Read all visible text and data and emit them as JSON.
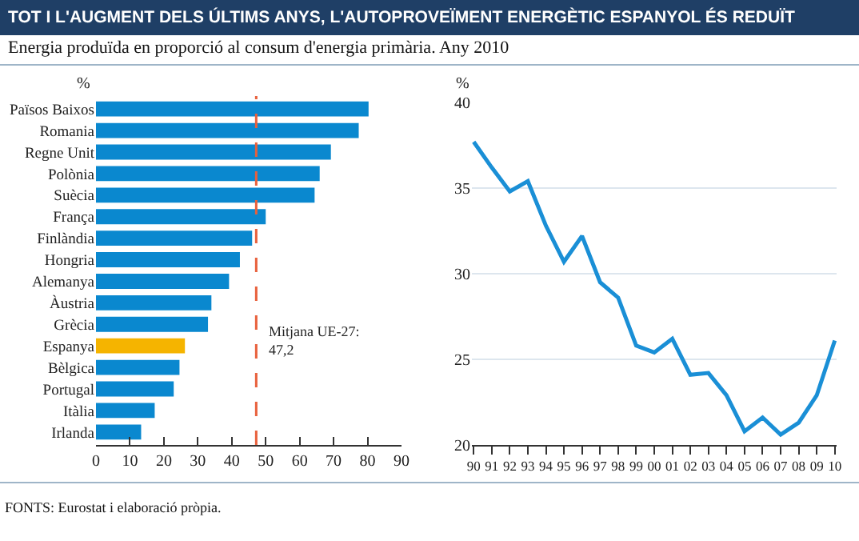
{
  "chart_data": [
    {
      "type": "bar",
      "orientation": "horizontal",
      "title": "TOT I L'AUGMENT DELS ÚLTIMS ANYS, L'AUTOPROVEÏMENT ENERGÈTIC ESPANYOL ÉS REDUÏT",
      "subtitle": "Energia produïda en proporció al consum d'energia primària. Any 2010",
      "xlabel": "%",
      "categories": [
        "Països Baixos",
        "Romania",
        "Regne Unit",
        "Polònia",
        "Suècia",
        "França",
        "Finlàndia",
        "Hongria",
        "Alemanya",
        "Àustria",
        "Grècia",
        "Espanya",
        "Bèlgica",
        "Portugal",
        "Itàlia",
        "Irlanda"
      ],
      "values": [
        80.3,
        77.4,
        69.2,
        65.9,
        64.4,
        50,
        46,
        42.4,
        39.2,
        34,
        33,
        26.2,
        24.6,
        22.9,
        17.3,
        13.3
      ],
      "colors": [
        "#0a88cf",
        "#0a88cf",
        "#0a88cf",
        "#0a88cf",
        "#0a88cf",
        "#0a88cf",
        "#0a88cf",
        "#0a88cf",
        "#0a88cf",
        "#0a88cf",
        "#0a88cf",
        "#f5b400",
        "#0a88cf",
        "#0a88cf",
        "#0a88cf",
        "#0a88cf"
      ],
      "xlim": [
        0,
        90
      ],
      "xticks": [
        0,
        10,
        20,
        30,
        40,
        50,
        60,
        70,
        80,
        90
      ],
      "grid": false,
      "ref_lines": [
        {
          "axis": "x",
          "value": 47.2,
          "label": "Mitjana UE-27:\n47,2",
          "color": "#e8603c",
          "line_style": "dashed"
        }
      ],
      "annotations": [
        "FONTS: Eurostat i elaboració pròpia."
      ]
    },
    {
      "type": "line",
      "ylabel": "%",
      "categories": [
        "90",
        "91",
        "92",
        "93",
        "94",
        "95",
        "96",
        "97",
        "98",
        "99",
        "00",
        "01",
        "02",
        "03",
        "04",
        "05",
        "06",
        "07",
        "08",
        "09",
        "10"
      ],
      "series": [
        {
          "color": "#1a8fd6",
          "values": [
            37.7,
            36.2,
            34.8,
            35.4,
            32.8,
            30.7,
            32.2,
            29.5,
            28.6,
            25.8,
            25.4,
            26.2,
            24.1,
            24.2,
            22.9,
            20.8,
            21.6,
            20.6,
            21.3,
            22.9,
            26.1
          ]
        }
      ],
      "ylim": [
        20,
        40
      ],
      "yticks": [
        20,
        25,
        30,
        35,
        40
      ],
      "grid": "y",
      "marker": "none",
      "line_style": "solid"
    }
  ]
}
